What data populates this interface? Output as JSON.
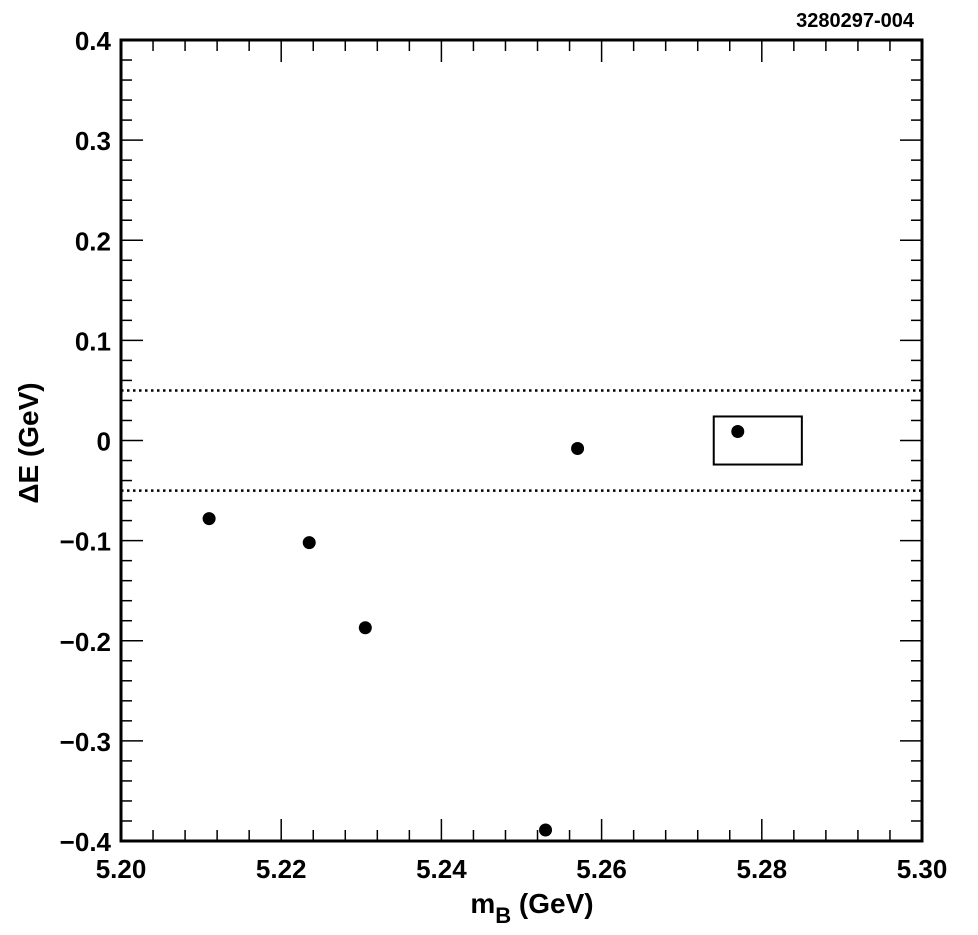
{
  "figure_id": "3280297-004",
  "chart_data": {
    "type": "scatter",
    "xlabel_main": "m",
    "xlabel_sub": "B",
    "xlabel_unit": " (GeV)",
    "ylabel": "ΔE (GeV)",
    "xlim": [
      5.2,
      5.3
    ],
    "ylim": [
      -0.4,
      0.4
    ],
    "x_ticks": [
      "5.20",
      "5.22",
      "5.24",
      "5.26",
      "5.28",
      "5.30"
    ],
    "x_tick_values": [
      5.2,
      5.22,
      5.24,
      5.26,
      5.28,
      5.3
    ],
    "y_ticks": [
      "0.4",
      "0.3",
      "0.2",
      "0.1",
      "0",
      "−0.1",
      "−0.2",
      "−0.3",
      "−0.4"
    ],
    "y_tick_values": [
      0.4,
      0.3,
      0.2,
      0.1,
      0,
      -0.1,
      -0.2,
      -0.3,
      -0.4
    ],
    "points": [
      {
        "x": 5.211,
        "y": -0.078
      },
      {
        "x": 5.2235,
        "y": -0.102
      },
      {
        "x": 5.2305,
        "y": -0.187
      },
      {
        "x": 5.253,
        "y": -0.389
      },
      {
        "x": 5.257,
        "y": -0.008
      },
      {
        "x": 5.277,
        "y": 0.009
      }
    ],
    "dotted_lines_y": [
      0.05,
      -0.05
    ],
    "signal_box": {
      "x": [
        5.274,
        5.285
      ],
      "y": [
        -0.024,
        0.024
      ]
    },
    "grid": false,
    "legend": "none"
  }
}
